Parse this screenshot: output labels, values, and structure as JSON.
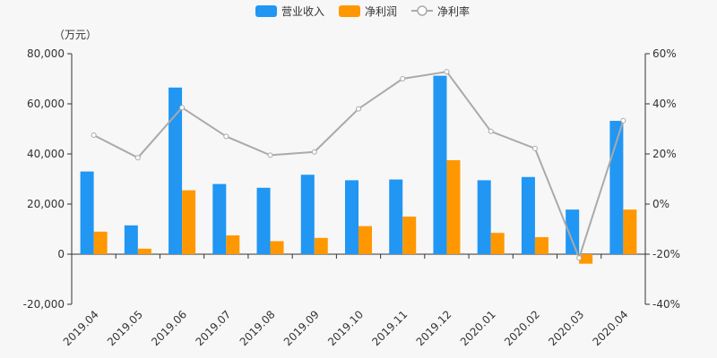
{
  "chart_data": {
    "type": "bar",
    "y_unit_label": "（万元）",
    "categories": [
      "2019.04",
      "2019.05",
      "2019.06",
      "2019.07",
      "2019.08",
      "2019.09",
      "2019.10",
      "2019.11",
      "2019.12",
      "2020.01",
      "2020.02",
      "2020.03",
      "2020.04"
    ],
    "series": [
      {
        "name": "营业收入",
        "type": "bar",
        "axis": "left",
        "color": "#2196f3",
        "values": [
          33000,
          11500,
          66500,
          28000,
          26500,
          31700,
          29500,
          29800,
          71200,
          29500,
          30800,
          17800,
          53200
        ]
      },
      {
        "name": "净利润",
        "type": "bar",
        "axis": "left",
        "color": "#ff9800",
        "values": [
          9000,
          2200,
          25500,
          7500,
          5200,
          6500,
          11200,
          15000,
          37500,
          8500,
          6800,
          -3800,
          17800
        ]
      },
      {
        "name": "净利率",
        "type": "line",
        "axis": "right",
        "color": "#aaaaaa",
        "values": [
          27.5,
          18.5,
          38.5,
          27,
          19.5,
          20.8,
          38,
          50,
          52.8,
          29,
          22.2,
          -21.5,
          33.3
        ]
      }
    ],
    "left_axis": {
      "min": -20000,
      "max": 80000,
      "ticks": [
        "-20,000",
        "0",
        "20,000",
        "40,000",
        "60,000",
        "80,000"
      ]
    },
    "right_axis": {
      "min": -40,
      "max": 60,
      "ticks": [
        "-40%",
        "-20%",
        "0%",
        "20%",
        "40%",
        "60%"
      ]
    },
    "legend_position": "top-center",
    "grid": false
  }
}
